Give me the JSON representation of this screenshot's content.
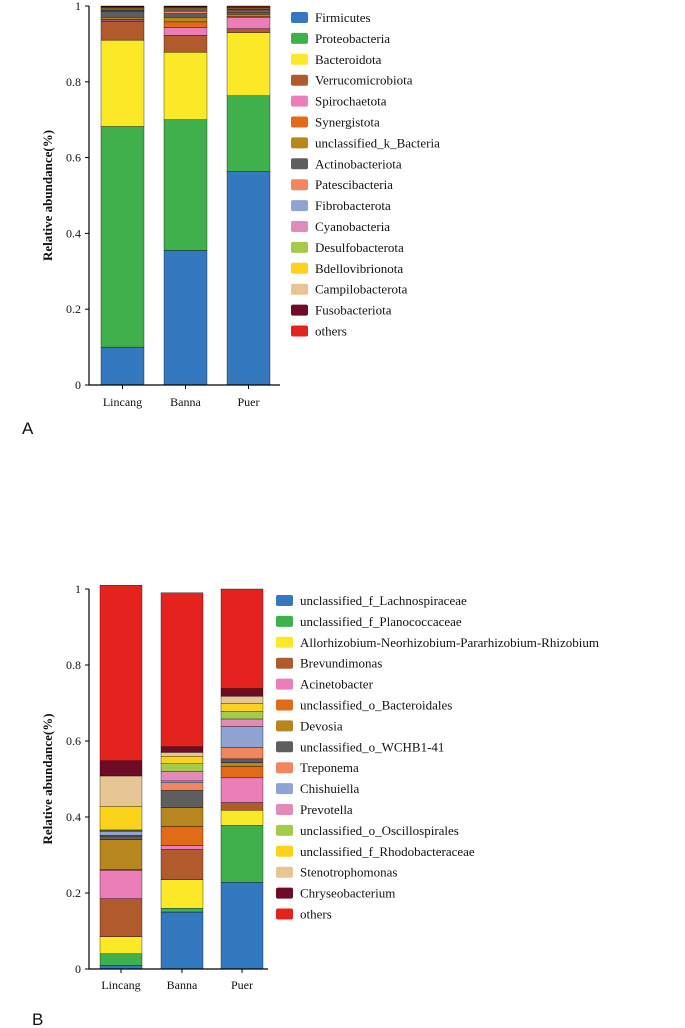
{
  "chart_data": [
    {
      "type": "bar",
      "stacked": true,
      "panel_label": "A",
      "ylabel": "Relative abundance(%)",
      "xlabel": "",
      "ylim": [
        0,
        1
      ],
      "yticks": [
        "0",
        "0.2",
        "0.4",
        "0.6",
        "0.8",
        "1"
      ],
      "categories": [
        "Lincang",
        "Banna",
        "Puer"
      ],
      "series": [
        {
          "name": "Firmicutes",
          "color": "#3478bf",
          "values": [
            0.1,
            0.355,
            0.563
          ]
        },
        {
          "name": "Proteobacteria",
          "color": "#3fb04b",
          "values": [
            0.582,
            0.345,
            0.2
          ]
        },
        {
          "name": "Bacteroidota",
          "color": "#fbe928",
          "values": [
            0.228,
            0.178,
            0.167
          ]
        },
        {
          "name": "Verrucomicrobiota",
          "color": "#b05a2d",
          "values": [
            0.05,
            0.045,
            0.01
          ]
        },
        {
          "name": "Spirochaetota",
          "color": "#eb7db8",
          "values": [
            0.003,
            0.02,
            0.03
          ]
        },
        {
          "name": "Synergistota",
          "color": "#e16b16",
          "values": [
            0.002,
            0.015,
            0.003
          ]
        },
        {
          "name": "unclassified_k_Bacteria",
          "color": "#b8861f",
          "values": [
            0.005,
            0.012,
            0.005
          ]
        },
        {
          "name": "Actinobacteriota",
          "color": "#5e5e5e",
          "values": [
            0.015,
            0.01,
            0.005
          ]
        },
        {
          "name": "Patescibacteria",
          "color": "#f2865f",
          "values": [
            0.002,
            0.005,
            0.003
          ]
        },
        {
          "name": "Fibrobacterota",
          "color": "#8fa4d3",
          "values": [
            0.002,
            0.003,
            0.002
          ]
        },
        {
          "name": "Cyanobacteria",
          "color": "#e48ab8",
          "values": [
            0.002,
            0.003,
            0.002
          ]
        },
        {
          "name": "Desulfobacterota",
          "color": "#a4cb4c",
          "values": [
            0.002,
            0.002,
            0.002
          ]
        },
        {
          "name": "Bdellovibrionota",
          "color": "#fbd21c",
          "values": [
            0.002,
            0.002,
            0.002
          ]
        },
        {
          "name": "Campilobacterota",
          "color": "#e7c594",
          "values": [
            0.002,
            0.002,
            0.002
          ]
        },
        {
          "name": "Fusobacteriota",
          "color": "#6e0b26",
          "values": [
            0.002,
            0.002,
            0.002
          ]
        },
        {
          "name": "others",
          "color": "#e4231f",
          "values": [
            0.001,
            0.001,
            0.002
          ]
        }
      ]
    },
    {
      "type": "bar",
      "stacked": true,
      "panel_label": "B",
      "ylabel": "Relative abundance(%)",
      "xlabel": "",
      "ylim": [
        0,
        1
      ],
      "yticks": [
        "0",
        "0.2",
        "0.4",
        "0.6",
        "0.8",
        "1"
      ],
      "categories": [
        "Lincang",
        "Banna",
        "Puer"
      ],
      "series": [
        {
          "name": "unclassified_f_Lachnospiraceae",
          "color": "#3478bf",
          "values": [
            0.01,
            0.15,
            0.228
          ]
        },
        {
          "name": "unclassified_f_Planococcaceae",
          "color": "#3fb04b",
          "values": [
            0.03,
            0.01,
            0.15
          ]
        },
        {
          "name": "Allorhizobium-Neorhizobium-Pararhizobium-Rhizobium",
          "color": "#fbe928",
          "values": [
            0.045,
            0.075,
            0.04
          ]
        },
        {
          "name": "Brevundimonas",
          "color": "#b05a2d",
          "values": [
            0.1,
            0.08,
            0.02
          ]
        },
        {
          "name": "Acinetobacter",
          "color": "#eb7db8",
          "values": [
            0.075,
            0.01,
            0.065
          ]
        },
        {
          "name": "unclassified_o_Bacteroidales",
          "color": "#e16b16",
          "values": [
            0.002,
            0.05,
            0.03
          ]
        },
        {
          "name": "Devosia",
          "color": "#b8861f",
          "values": [
            0.078,
            0.05,
            0.01
          ]
        },
        {
          "name": "unclassified_o_WCHB1-41",
          "color": "#5e5e5e",
          "values": [
            0.01,
            0.045,
            0.01
          ]
        },
        {
          "name": "Treponema",
          "color": "#f2865f",
          "values": [
            0.002,
            0.02,
            0.03
          ]
        },
        {
          "name": "Chishuiella",
          "color": "#8fa4d3",
          "values": [
            0.01,
            0.005,
            0.055
          ]
        },
        {
          "name": "Prevotella",
          "color": "#e48ab8",
          "values": [
            0.002,
            0.025,
            0.02
          ]
        },
        {
          "name": "unclassified_o_Oscillospirales",
          "color": "#a4cb4c",
          "values": [
            0.002,
            0.02,
            0.02
          ]
        },
        {
          "name": "unclassified_f_Rhodobacteraceae",
          "color": "#fbd21c",
          "values": [
            0.062,
            0.02,
            0.02
          ]
        },
        {
          "name": "Stenotrophomonas",
          "color": "#e7c594",
          "values": [
            0.08,
            0.01,
            0.02
          ]
        },
        {
          "name": "Chryseobacterium",
          "color": "#6e0b26",
          "values": [
            0.04,
            0.015,
            0.02
          ]
        },
        {
          "name": "others",
          "color": "#e4231f",
          "values": [
            0.462,
            0.405,
            0.262
          ]
        }
      ]
    }
  ]
}
